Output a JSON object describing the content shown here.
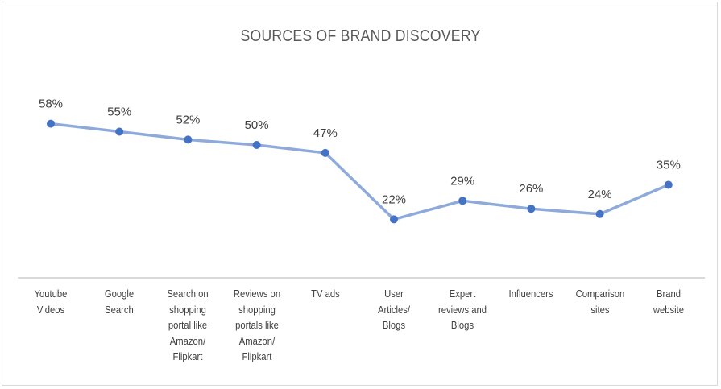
{
  "chart_data": {
    "type": "line",
    "title": "SOURCES OF BRAND DISCOVERY",
    "categories": [
      [
        "Youtube",
        "Videos"
      ],
      [
        "Google",
        "Search"
      ],
      [
        "Search on",
        "shopping",
        "portal like",
        "Amazon/",
        "Flipkart"
      ],
      [
        "Reviews on",
        "shopping",
        "portals like",
        "Amazon/",
        "Flipkart"
      ],
      [
        "TV ads"
      ],
      [
        "User",
        "Articles/",
        "Blogs"
      ],
      [
        "Expert",
        "reviews and",
        "Blogs"
      ],
      [
        "Influencers"
      ],
      [
        "Comparison",
        "sites"
      ],
      [
        "Brand",
        "website"
      ]
    ],
    "values": [
      58,
      55,
      52,
      50,
      47,
      22,
      29,
      26,
      24,
      35
    ],
    "data_labels": [
      "58%",
      "55%",
      "52%",
      "50%",
      "47%",
      "22%",
      "29%",
      "26%",
      "24%",
      "35%"
    ],
    "ylim": [
      0,
      60
    ],
    "xlabel": "",
    "ylabel": "",
    "grid": false,
    "line_color": "#8eaadb",
    "marker_color": "#4472c4"
  }
}
